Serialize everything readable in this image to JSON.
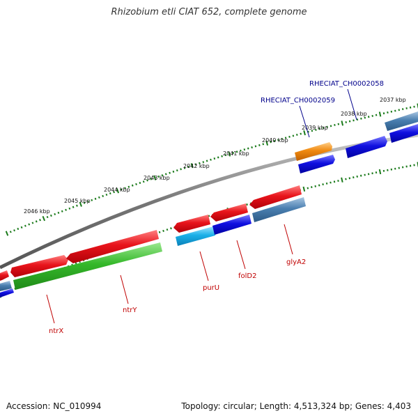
{
  "title": "Rhizobium etli CIAT 652, complete genome",
  "footer": {
    "accession": "Accession: NC_010994",
    "topology": "Topology: circular; Length: 4,513,324 bp; Genes: 4,403"
  },
  "kbp_labels": [
    "2046 kbp",
    "2045 kbp",
    "2044 kbp",
    "2043 kbp",
    "2042 kbp",
    "2041 kbp",
    "2040 kbp",
    "2039 kbp",
    "2038 kbp",
    "2037 kbp"
  ],
  "gene_labels": [
    "ntrX",
    "ntrY",
    "purU",
    "folD2",
    "glyA2"
  ],
  "locus_labels": [
    "RHECIAT_CH0002059",
    "RHECIAT_CH0002058"
  ],
  "colors": {
    "backbone": "#777777",
    "tick_major": "#1a7a1a",
    "tick_minor": "#1a7a1a",
    "cds_red": "#e8141b",
    "cds_green": "#35b82a",
    "cds_blue": "#1010e0",
    "cds_cyan": "#1ab0e8",
    "cds_steel": "#4a7fb0",
    "cds_orange": "#f08a10",
    "gene_label": "#c00000",
    "locus_label": "#00008b"
  }
}
